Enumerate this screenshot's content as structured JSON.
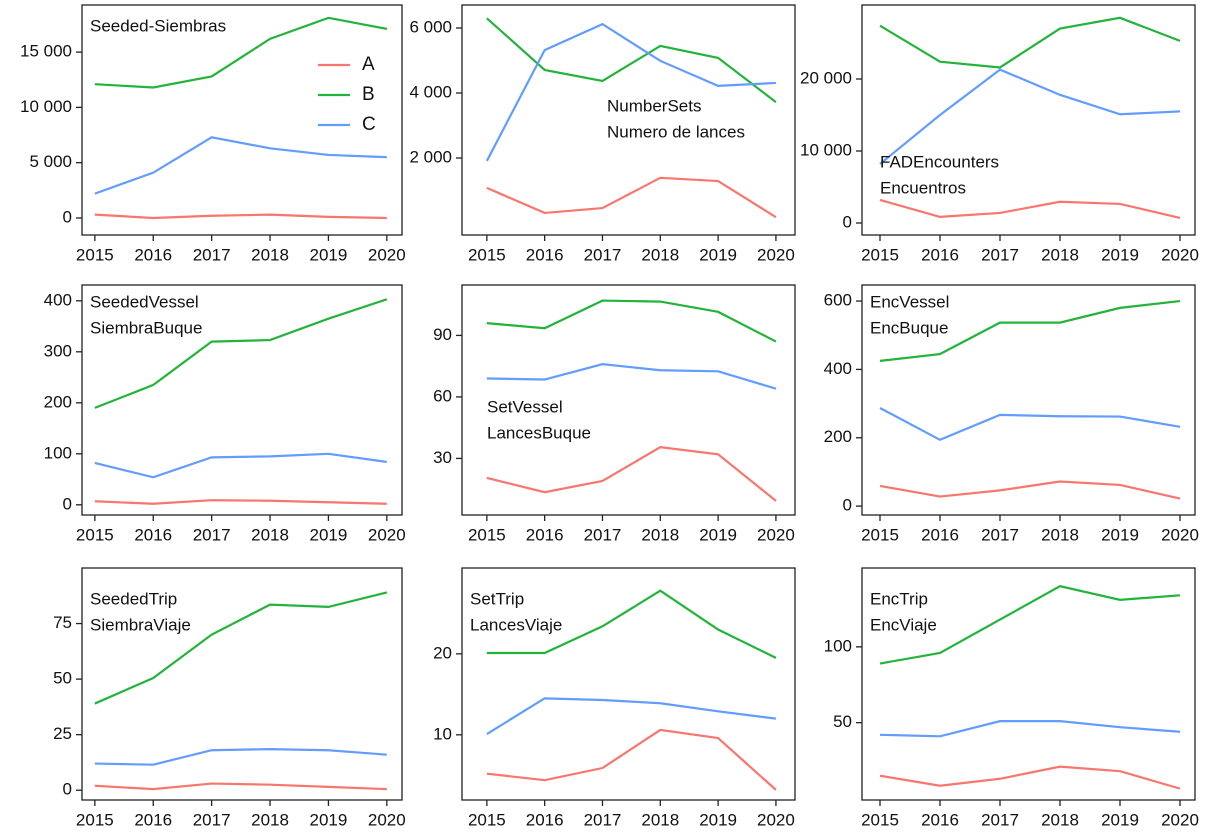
{
  "chart_data": [
    {
      "type": "line",
      "title": "Seeded-Siembras",
      "legend": "top-right",
      "x": [
        2015,
        2016,
        2017,
        2018,
        2019,
        2020
      ],
      "xticks": [
        2015,
        2016,
        2017,
        2018,
        2019,
        2020
      ],
      "xlim": [
        2014.78,
        2020.26
      ],
      "ylim": [
        -1540,
        19260
      ],
      "yticks": [
        0,
        {
          "value": 5000,
          "label": "5 000"
        },
        {
          "value": 10000,
          "label": "10 000"
        },
        {
          "value": 15000,
          "label": "15 000"
        }
      ],
      "series": [
        {
          "name": "A",
          "color": "#f8766d",
          "values": [
            300,
            0,
            200,
            300,
            100,
            0
          ]
        },
        {
          "name": "B",
          "color": "#22b43a",
          "values": [
            12100,
            11800,
            12800,
            16200,
            18100,
            17100
          ]
        },
        {
          "name": "C",
          "color": "#619cff",
          "values": [
            2200,
            4100,
            7300,
            6300,
            5700,
            5500
          ]
        }
      ]
    },
    {
      "type": "line",
      "title": "NumberSets",
      "subtitle": "Numero de lances",
      "x": [
        2015,
        2016,
        2017,
        2018,
        2019,
        2020
      ],
      "xticks": [
        2015,
        2016,
        2017,
        2018,
        2019,
        2020
      ],
      "xlim": [
        2014.57,
        2020.33
      ],
      "ylim": [
        -369,
        6708
      ],
      "yticks": [
        {
          "value": 2000,
          "label": "2 000"
        },
        {
          "value": 4000,
          "label": "4 000"
        },
        {
          "value": 6000,
          "label": "6 000"
        }
      ],
      "series": [
        {
          "name": "A",
          "color": "#f8766d",
          "values": [
            1080,
            310,
            460,
            1390,
            1290,
            180
          ]
        },
        {
          "name": "B",
          "color": "#22b43a",
          "values": [
            6300,
            4710,
            4370,
            5450,
            5080,
            3720
          ]
        },
        {
          "name": "C",
          "color": "#619cff",
          "values": [
            1910,
            5320,
            6120,
            4990,
            4220,
            4310
          ]
        }
      ]
    },
    {
      "type": "line",
      "title": "FADEncounters",
      "subtitle": "Encuentros",
      "x": [
        2015,
        2016,
        2017,
        2018,
        2019,
        2020
      ],
      "xticks": [
        2015,
        2016,
        2017,
        2018,
        2019,
        2020
      ],
      "xlim": [
        2014.7,
        2020.25
      ],
      "ylim": [
        -1667,
        30278
      ],
      "yticks": [
        0,
        {
          "value": 10000,
          "label": "10 000"
        },
        {
          "value": 20000,
          "label": "20 000"
        }
      ],
      "series": [
        {
          "name": "A",
          "color": "#f8766d",
          "values": [
            3200,
            850,
            1400,
            2950,
            2650,
            700
          ]
        },
        {
          "name": "B",
          "color": "#22b43a",
          "values": [
            27400,
            22400,
            21600,
            27000,
            28500,
            25300
          ]
        },
        {
          "name": "C",
          "color": "#619cff",
          "values": [
            8200,
            15000,
            21300,
            17800,
            15100,
            15500
          ]
        }
      ]
    },
    {
      "type": "line",
      "title": "SeededVessel",
      "subtitle": "SiembraBuque",
      "x": [
        2015,
        2016,
        2017,
        2018,
        2019,
        2020
      ],
      "xticks": [
        2015,
        2016,
        2017,
        2018,
        2019,
        2020
      ],
      "xlim": [
        2014.78,
        2020.26
      ],
      "ylim": [
        -20,
        431
      ],
      "yticks": [
        0,
        100,
        200,
        300,
        400
      ],
      "series": [
        {
          "name": "A",
          "color": "#f8766d",
          "values": [
            7,
            2,
            9,
            8,
            5,
            2
          ]
        },
        {
          "name": "B",
          "color": "#22b43a",
          "values": [
            190,
            235,
            320,
            323,
            365,
            403
          ]
        },
        {
          "name": "C",
          "color": "#619cff",
          "values": [
            82,
            54,
            93,
            95,
            100,
            84
          ]
        }
      ]
    },
    {
      "type": "line",
      "title": "SetVessel",
      "subtitle": "LancesBuque",
      "x": [
        2015,
        2016,
        2017,
        2018,
        2019,
        2020
      ],
      "xticks": [
        2015,
        2016,
        2017,
        2018,
        2019,
        2020
      ],
      "xlim": [
        2014.57,
        2020.33
      ],
      "ylim": [
        2.4,
        114.6
      ],
      "yticks": [
        30,
        60,
        90
      ],
      "series": [
        {
          "name": "A",
          "color": "#f8766d",
          "values": [
            20.5,
            13.5,
            19,
            35.5,
            32,
            9.3
          ]
        },
        {
          "name": "B",
          "color": "#22b43a",
          "values": [
            96,
            93.5,
            107,
            106.5,
            101.5,
            87
          ]
        },
        {
          "name": "C",
          "color": "#619cff",
          "values": [
            69,
            68.5,
            76,
            73,
            72.5,
            64
          ]
        }
      ]
    },
    {
      "type": "line",
      "title": "EncVessel",
      "subtitle": "EncBuque",
      "x": [
        2015,
        2016,
        2017,
        2018,
        2019,
        2020
      ],
      "xticks": [
        2015,
        2016,
        2017,
        2018,
        2019,
        2020
      ],
      "xlim": [
        2014.7,
        2020.25
      ],
      "ylim": [
        -26,
        647
      ],
      "yticks": [
        0,
        200,
        400,
        600
      ],
      "series": [
        {
          "name": "A",
          "color": "#f8766d",
          "values": [
            59,
            28,
            46,
            72,
            62,
            22
          ]
        },
        {
          "name": "B",
          "color": "#22b43a",
          "values": [
            425,
            445,
            537,
            537,
            580,
            600
          ]
        },
        {
          "name": "C",
          "color": "#619cff",
          "values": [
            287,
            194,
            267,
            263,
            262,
            232
          ]
        }
      ]
    },
    {
      "type": "line",
      "title": "SeededTrip",
      "subtitle": "SiembraViaje",
      "x": [
        2015,
        2016,
        2017,
        2018,
        2019,
        2020
      ],
      "xticks": [
        2015,
        2016,
        2017,
        2018,
        2019,
        2020
      ],
      "xlim": [
        2014.78,
        2020.26
      ],
      "ylim": [
        -4.4,
        100
      ],
      "yticks": [
        0,
        25,
        50,
        75
      ],
      "series": [
        {
          "name": "A",
          "color": "#f8766d",
          "values": [
            2,
            0.5,
            3,
            2.5,
            1.5,
            0.5
          ]
        },
        {
          "name": "B",
          "color": "#22b43a",
          "values": [
            39,
            50.5,
            70,
            83.5,
            82.5,
            89
          ]
        },
        {
          "name": "C",
          "color": "#619cff",
          "values": [
            12,
            11.5,
            18,
            18.5,
            18,
            16
          ]
        }
      ]
    },
    {
      "type": "line",
      "title": "SetTrip",
      "subtitle": "LancesViaje",
      "x": [
        2015,
        2016,
        2017,
        2018,
        2019,
        2020
      ],
      "xticks": [
        2015,
        2016,
        2017,
        2018,
        2019,
        2020
      ],
      "xlim": [
        2014.57,
        2020.33
      ],
      "ylim": [
        1.95,
        30.6
      ],
      "yticks": [
        10,
        20
      ],
      "series": [
        {
          "name": "A",
          "color": "#f8766d",
          "values": [
            5.2,
            4.4,
            5.9,
            10.6,
            9.6,
            3.2
          ]
        },
        {
          "name": "B",
          "color": "#22b43a",
          "values": [
            20.1,
            20.1,
            23.4,
            27.8,
            23,
            19.5
          ]
        },
        {
          "name": "C",
          "color": "#619cff",
          "values": [
            10.1,
            14.5,
            14.3,
            13.9,
            12.9,
            12
          ]
        }
      ]
    },
    {
      "type": "line",
      "title": "EncTrip",
      "subtitle": "EncViaje",
      "x": [
        2015,
        2016,
        2017,
        2018,
        2019,
        2020
      ],
      "xticks": [
        2015,
        2016,
        2017,
        2018,
        2019,
        2020
      ],
      "xlim": [
        2014.7,
        2020.25
      ],
      "ylim": [
        -1,
        152
      ],
      "yticks": [
        50,
        100
      ],
      "series": [
        {
          "name": "A",
          "color": "#f8766d",
          "values": [
            15,
            8.4,
            13,
            21,
            18,
            6.5
          ]
        },
        {
          "name": "B",
          "color": "#22b43a",
          "values": [
            89,
            96,
            118,
            140,
            131,
            134
          ]
        },
        {
          "name": "C",
          "color": "#619cff",
          "values": [
            42,
            41,
            51,
            51,
            47,
            44
          ]
        }
      ]
    }
  ]
}
